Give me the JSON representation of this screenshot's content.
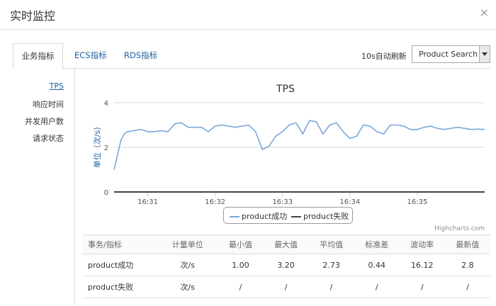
{
  "window": {
    "title": "实时监控",
    "close": "×"
  },
  "tabs": [
    {
      "label": "业务指标",
      "active": true
    },
    {
      "label": "ECS指标",
      "active": false
    },
    {
      "label": "RDS指标",
      "active": false
    }
  ],
  "toolbar": {
    "refresh": "10s自动刷新",
    "select_value": "Product Search"
  },
  "sidebar": {
    "items": [
      "TPS",
      "响应时间",
      "并发用户数",
      "请求状态"
    ],
    "active_index": 0
  },
  "chart_data": {
    "type": "line",
    "title": "TPS",
    "ylabel": "单位（次/s）",
    "ylim": [
      0,
      4
    ],
    "yticks": [
      "0",
      "2",
      "4"
    ],
    "xticks": [
      "16:31",
      "16:32",
      "16:33",
      "16:34",
      "16:35"
    ],
    "x": [
      0,
      0.1,
      0.15,
      0.2,
      0.3,
      0.4,
      0.5,
      0.6,
      0.7,
      0.8,
      0.9,
      1.0,
      1.1,
      1.2,
      1.3,
      1.4,
      1.5,
      1.6,
      1.7,
      1.8,
      1.9,
      2.0,
      2.1,
      2.2,
      2.3,
      2.4,
      2.5,
      2.6,
      2.7,
      2.8,
      2.9,
      3.0,
      3.1,
      3.2,
      3.3,
      3.4,
      3.5,
      3.6,
      3.7,
      3.8,
      3.9,
      4.0,
      4.1,
      4.2,
      4.3,
      4.4,
      4.5,
      4.6,
      4.7,
      4.8,
      4.9,
      5.0,
      5.1,
      5.2,
      5.3,
      5.4,
      5.5
    ],
    "series": [
      {
        "name": "product成功",
        "color": "#7ba7d9",
        "values": [
          1.0,
          2.3,
          2.6,
          2.7,
          2.75,
          2.8,
          2.7,
          2.7,
          2.75,
          2.7,
          3.05,
          3.1,
          2.9,
          2.9,
          2.9,
          2.7,
          2.95,
          3.0,
          2.95,
          2.9,
          2.95,
          3.0,
          2.7,
          1.9,
          2.05,
          2.5,
          2.7,
          3.0,
          3.1,
          2.6,
          3.2,
          3.15,
          2.6,
          3.0,
          3.1,
          2.7,
          2.4,
          2.5,
          3.0,
          2.95,
          2.7,
          2.6,
          3.0,
          3.0,
          2.95,
          2.8,
          2.8,
          2.9,
          2.95,
          2.85,
          2.8,
          2.85,
          2.9,
          2.85,
          2.8,
          2.82,
          2.8
        ]
      },
      {
        "name": "product失败",
        "color": "#434348",
        "values": [
          0,
          0,
          0,
          0,
          0,
          0,
          0,
          0,
          0,
          0,
          0,
          0,
          0,
          0,
          0,
          0,
          0,
          0,
          0,
          0,
          0,
          0,
          0,
          0,
          0,
          0,
          0,
          0,
          0,
          0,
          0,
          0,
          0,
          0,
          0,
          0,
          0,
          0,
          0,
          0,
          0,
          0,
          0,
          0,
          0,
          0,
          0,
          0,
          0,
          0,
          0,
          0,
          0,
          0,
          0,
          0,
          0
        ]
      }
    ],
    "legend_position": "bottom-center",
    "grid": true
  },
  "credits": "Highcharts.com",
  "table": {
    "headers": [
      "事务/指标",
      "计量单位",
      "最小值",
      "最大值",
      "平均值",
      "标准差",
      "波动率",
      "最新值"
    ],
    "rows": [
      [
        "product成功",
        "次/s",
        "1.00",
        "3.20",
        "2.73",
        "0.44",
        "16.12",
        "2.8"
      ],
      [
        "product失败",
        "次/s",
        "/",
        "/",
        "/",
        "/",
        "/",
        "/"
      ]
    ]
  }
}
